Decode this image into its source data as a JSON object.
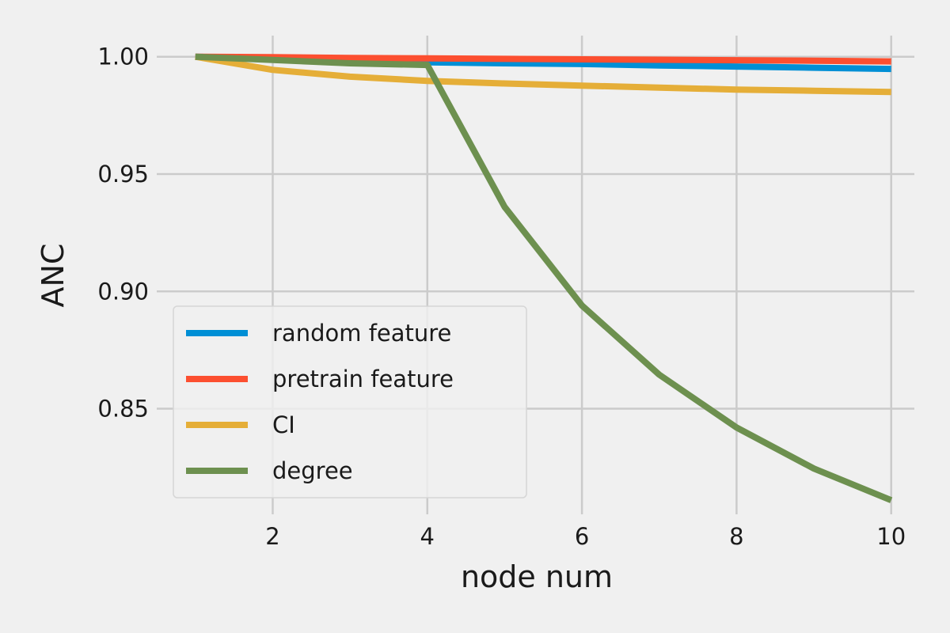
{
  "chart_data": {
    "type": "line",
    "xlabel": "node num",
    "ylabel": "ANC",
    "xlim": [
      0.5,
      10.3
    ],
    "ylim": [
      0.805,
      1.009
    ],
    "xticks": [
      2,
      4,
      6,
      8,
      10
    ],
    "yticks": [
      0.85,
      0.9,
      0.95,
      1.0
    ],
    "xtick_labels": [
      "2",
      "4",
      "6",
      "8",
      "10"
    ],
    "ytick_labels": [
      "0.85",
      "0.90",
      "0.95",
      "1.00"
    ],
    "grid": true,
    "legend_position": "lower-left",
    "x": [
      1,
      2,
      3,
      4,
      5,
      6,
      7,
      8,
      9,
      10
    ],
    "series": [
      {
        "name": "random feature",
        "color": "#008fd5",
        "values": [
          1.0,
          0.999,
          0.9982,
          0.9976,
          0.9972,
          0.9969,
          0.9963,
          0.9958,
          0.9953,
          0.9948
        ]
      },
      {
        "name": "pretrain feature",
        "color": "#fc4f30",
        "values": [
          1.0,
          0.9998,
          0.9995,
          0.9993,
          0.9991,
          0.9989,
          0.9987,
          0.9985,
          0.9983,
          0.998
        ]
      },
      {
        "name": "CI",
        "color": "#e5ae38",
        "values": [
          1.0,
          0.9944,
          0.9915,
          0.9897,
          0.9886,
          0.9877,
          0.9868,
          0.986,
          0.9855,
          0.985
        ]
      },
      {
        "name": "degree",
        "color": "#6d904f",
        "values": [
          1.0,
          0.9986,
          0.9972,
          0.9965,
          0.936,
          0.894,
          0.8645,
          0.842,
          0.8245,
          0.811
        ]
      }
    ]
  }
}
